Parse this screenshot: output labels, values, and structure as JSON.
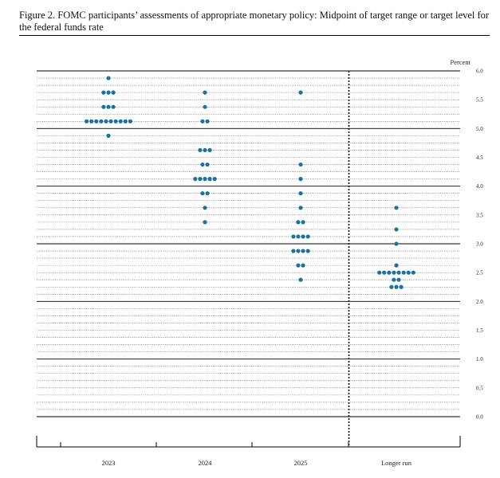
{
  "figure": {
    "caption": "Figure 2. FOMC participants’ assessments of appropriate monetary policy: Midpoint of target range or target level for the federal funds rate"
  },
  "chart_data": {
    "type": "scatter",
    "unit_label": "Percent",
    "ylim": [
      0,
      6
    ],
    "y_ticks": [
      "0.0",
      "0.5",
      "1.0",
      "1.5",
      "2.0",
      "2.5",
      "3.0",
      "3.5",
      "4.0",
      "4.5",
      "5.0",
      "5.5",
      "6.0"
    ],
    "categories": [
      "2023",
      "2024",
      "2025",
      "Longer run"
    ],
    "dot_color": "#1f6f9f",
    "grid": true,
    "separator_before": "Longer run",
    "series": [
      {
        "category": "2023",
        "points": [
          {
            "y": 5.875,
            "count": 1
          },
          {
            "y": 5.625,
            "count": 3
          },
          {
            "y": 5.375,
            "count": 3
          },
          {
            "y": 5.125,
            "count": 10
          },
          {
            "y": 4.875,
            "count": 1
          }
        ]
      },
      {
        "category": "2024",
        "points": [
          {
            "y": 5.625,
            "count": 1
          },
          {
            "y": 5.375,
            "count": 1
          },
          {
            "y": 5.125,
            "count": 2
          },
          {
            "y": 4.625,
            "count": 3
          },
          {
            "y": 4.375,
            "count": 2
          },
          {
            "y": 4.125,
            "count": 5
          },
          {
            "y": 3.875,
            "count": 2
          },
          {
            "y": 3.625,
            "count": 1
          },
          {
            "y": 3.375,
            "count": 1
          }
        ]
      },
      {
        "category": "2025",
        "points": [
          {
            "y": 5.625,
            "count": 1
          },
          {
            "y": 4.375,
            "count": 1
          },
          {
            "y": 4.125,
            "count": 1
          },
          {
            "y": 3.875,
            "count": 1
          },
          {
            "y": 3.625,
            "count": 1
          },
          {
            "y": 3.375,
            "count": 2
          },
          {
            "y": 3.125,
            "count": 4
          },
          {
            "y": 2.875,
            "count": 4
          },
          {
            "y": 2.625,
            "count": 2
          },
          {
            "y": 2.375,
            "count": 1
          }
        ]
      },
      {
        "category": "Longer run",
        "points": [
          {
            "y": 3.625,
            "count": 1
          },
          {
            "y": 3.25,
            "count": 1
          },
          {
            "y": 3.0,
            "count": 1
          },
          {
            "y": 2.625,
            "count": 1
          },
          {
            "y": 2.5,
            "count": 8
          },
          {
            "y": 2.375,
            "count": 2
          },
          {
            "y": 2.25,
            "count": 3
          }
        ]
      }
    ]
  }
}
